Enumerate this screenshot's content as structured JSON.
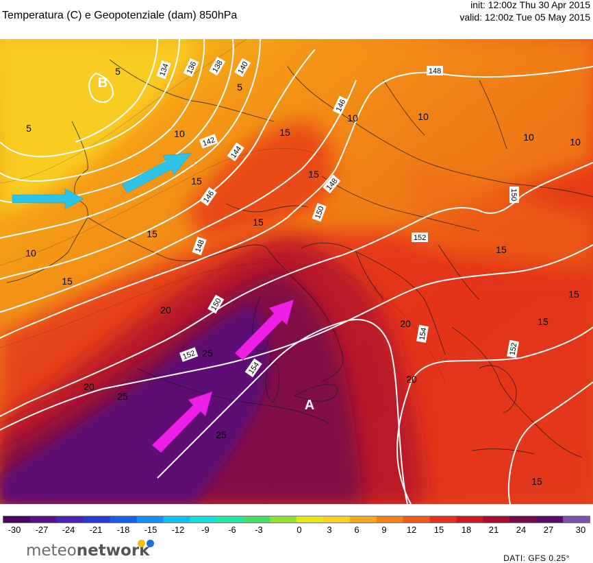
{
  "header": {
    "title": "Temperatura (C) e Geopotenziale (dam) 850hPa",
    "init": "init: 12:00z Thu 30 Apr 2015",
    "valid": "valid: 12:00z Tue 05 May 2015"
  },
  "map": {
    "pressure_centers": {
      "low": "B",
      "high": "A"
    },
    "geopotential_labels": [
      "134",
      "136",
      "138",
      "140",
      "142",
      "144",
      "146",
      "146",
      "148",
      "148",
      "148",
      "150",
      "150",
      "150",
      "152",
      "152",
      "152",
      "154",
      "154"
    ],
    "temperature_labels": [
      "5",
      "5",
      "5",
      "10",
      "10",
      "10",
      "10",
      "10",
      "10",
      "15",
      "15",
      "15",
      "15",
      "15",
      "15",
      "15",
      "15",
      "15",
      "15",
      "20",
      "20",
      "20",
      "20",
      "25",
      "25",
      "25",
      "25"
    ],
    "arrows": {
      "cold_advection_color": "#2cc3e6",
      "warm_advection_color": "#ee1ee6"
    }
  },
  "colorbar": {
    "ticks": [
      "-30",
      "-27",
      "-24",
      "-21",
      "-18",
      "-15",
      "-12",
      "-9",
      "-6",
      "-3",
      "0",
      "3",
      "6",
      "9",
      "12",
      "15",
      "18",
      "21",
      "24",
      "27",
      "30"
    ],
    "colors": [
      "#4a0064",
      "#5a1090",
      "#4a22b8",
      "#2a3ad8",
      "#1060f0",
      "#1090f8",
      "#10c0f0",
      "#10e0d8",
      "#20e8a0",
      "#40e060",
      "#90e030",
      "#e8e810",
      "#fcd020",
      "#f8a818",
      "#f48018",
      "#f05818",
      "#e83018",
      "#d01820",
      "#a80c30",
      "#7a0850",
      "#580870",
      "#8050b0"
    ]
  },
  "footer": {
    "logo_light": "meteo",
    "logo_bold": "network",
    "source": "DATI: GFS 0.25°"
  }
}
